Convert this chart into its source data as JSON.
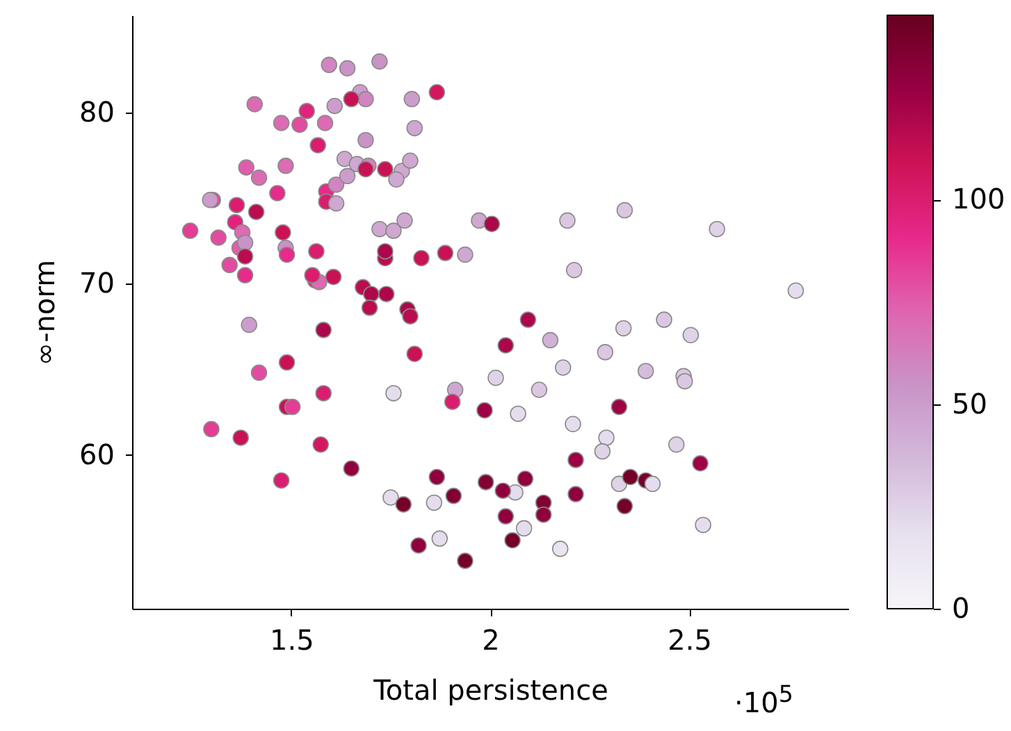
{
  "chart_data": {
    "type": "scatter",
    "xlabel": "Total persistence",
    "ylabel": "∞-norm",
    "annotations": [
      "·10$^{5}$"
    ],
    "marker": "circle",
    "grid": false,
    "xlim": [
      1.1,
      2.9
    ],
    "ylim": [
      51,
      85.7
    ],
    "xticks": [
      1.5,
      2,
      2.5
    ],
    "yticks": [
      60,
      70,
      80
    ],
    "clim": [
      0,
      145
    ],
    "cticks": [
      0,
      50,
      100
    ],
    "x": [
      1.595,
      1.641,
      1.722,
      1.866,
      1.673,
      1.687,
      1.651,
      1.609,
      1.803,
      1.408,
      1.539,
      1.475,
      1.521,
      1.585,
      1.567,
      1.81,
      1.687,
      1.387,
      1.419,
      1.486,
      1.465,
      1.588,
      1.613,
      1.641,
      1.634,
      1.665,
      1.694,
      1.687,
      1.736,
      1.778,
      1.799,
      1.764,
      1.588,
      1.613,
      1.303,
      1.296,
      1.363,
      1.412,
      1.359,
      1.246,
      1.317,
      1.377,
      1.37,
      1.384,
      1.479,
      1.486,
      1.489,
      1.345,
      1.384,
      1.384,
      1.563,
      1.56,
      1.57,
      1.606,
      1.553,
      1.722,
      1.757,
      1.785,
      1.736,
      1.736,
      1.827,
      1.887,
      1.937,
      1.972,
      2.004,
      2.194,
      2.338,
      2.57,
      2.211,
      2.768,
      1.68,
      1.701,
      1.739,
      1.697,
      1.792,
      1.799,
      1.394,
      2.095,
      2.039,
      2.151,
      2.335,
      2.437,
      2.504,
      2.289,
      1.581,
      1.419,
      1.489,
      1.81,
      1.581,
      2.183,
      2.014,
      1.912,
      2.123,
      2.391,
      2.486,
      2.489,
      1.757,
      1.905,
      1.986,
      2.07,
      2.208,
      2.324,
      1.489,
      1.503,
      1.299,
      1.373,
      1.574,
      1.475,
      1.651,
      2.292,
      2.282,
      2.468,
      2.215,
      2.528,
      1.75,
      1.782,
      1.866,
      1.908,
      1.859,
      1.989,
      2.063,
      2.088,
      2.032,
      2.134,
      2.134,
      2.039,
      2.085,
      2.056,
      2.324,
      2.352,
      2.391,
      2.408,
      2.338,
      2.215,
      2.535,
      1.873,
      1.82,
      1.937,
      2.176
    ],
    "values": [
      82.8,
      82.6,
      83.0,
      81.2,
      81.2,
      80.8,
      80.8,
      80.4,
      80.8,
      80.5,
      80.1,
      79.4,
      79.3,
      79.4,
      78.1,
      79.1,
      78.4,
      76.8,
      76.2,
      76.9,
      75.3,
      75.4,
      75.8,
      76.3,
      77.3,
      77.0,
      76.9,
      76.7,
      76.7,
      76.6,
      77.2,
      76.1,
      74.8,
      74.7,
      74.9,
      74.9,
      74.6,
      74.2,
      73.6,
      73.1,
      72.7,
      73.0,
      72.1,
      72.4,
      73.0,
      72.1,
      71.7,
      71.1,
      71.6,
      70.5,
      71.9,
      70.2,
      70.1,
      70.4,
      70.5,
      73.2,
      73.1,
      73.7,
      71.5,
      71.9,
      71.5,
      71.8,
      71.7,
      73.7,
      73.5,
      73.7,
      74.3,
      73.2,
      70.8,
      69.6,
      69.8,
      69.4,
      69.4,
      68.6,
      68.5,
      68.1,
      67.6,
      67.9,
      66.4,
      66.7,
      67.4,
      67.9,
      67.0,
      66.0,
      67.3,
      64.8,
      65.4,
      65.9,
      63.6,
      65.1,
      64.5,
      63.8,
      63.8,
      64.9,
      64.6,
      64.3,
      63.6,
      63.1,
      62.6,
      62.4,
      61.8,
      62.8,
      62.8,
      62.8,
      61.5,
      61.0,
      60.6,
      58.5,
      59.2,
      61.0,
      60.2,
      60.6,
      59.7,
      59.5,
      57.5,
      57.1,
      58.7,
      57.6,
      57.2,
      58.4,
      57.8,
      58.6,
      57.9,
      57.2,
      56.5,
      56.4,
      55.7,
      55.0,
      58.3,
      58.7,
      58.5,
      58.3,
      57.0,
      57.7,
      55.9,
      55.1,
      54.7,
      53.8,
      54.5
    ],
    "cvalues": [
      60,
      55,
      55,
      105,
      50,
      60,
      110,
      50,
      50,
      70,
      95,
      70,
      80,
      70,
      100,
      45,
      55,
      75,
      70,
      70,
      90,
      90,
      60,
      50,
      45,
      45,
      60,
      110,
      110,
      45,
      45,
      45,
      100,
      45,
      80,
      50,
      100,
      115,
      95,
      85,
      80,
      70,
      75,
      55,
      110,
      55,
      90,
      80,
      115,
      90,
      100,
      95,
      70,
      110,
      100,
      45,
      45,
      45,
      115,
      120,
      110,
      110,
      45,
      45,
      120,
      30,
      30,
      25,
      30,
      20,
      115,
      120,
      120,
      115,
      120,
      115,
      50,
      120,
      120,
      40,
      25,
      30,
      25,
      30,
      120,
      80,
      110,
      110,
      100,
      25,
      25,
      45,
      30,
      35,
      30,
      30,
      20,
      100,
      125,
      20,
      20,
      125,
      110,
      85,
      85,
      110,
      105,
      100,
      130,
      20,
      25,
      25,
      125,
      125,
      20,
      140,
      130,
      135,
      20,
      135,
      20,
      130,
      130,
      135,
      130,
      130,
      20,
      140,
      25,
      140,
      140,
      20,
      140,
      130,
      20,
      20,
      130,
      140,
      15
    ]
  }
}
